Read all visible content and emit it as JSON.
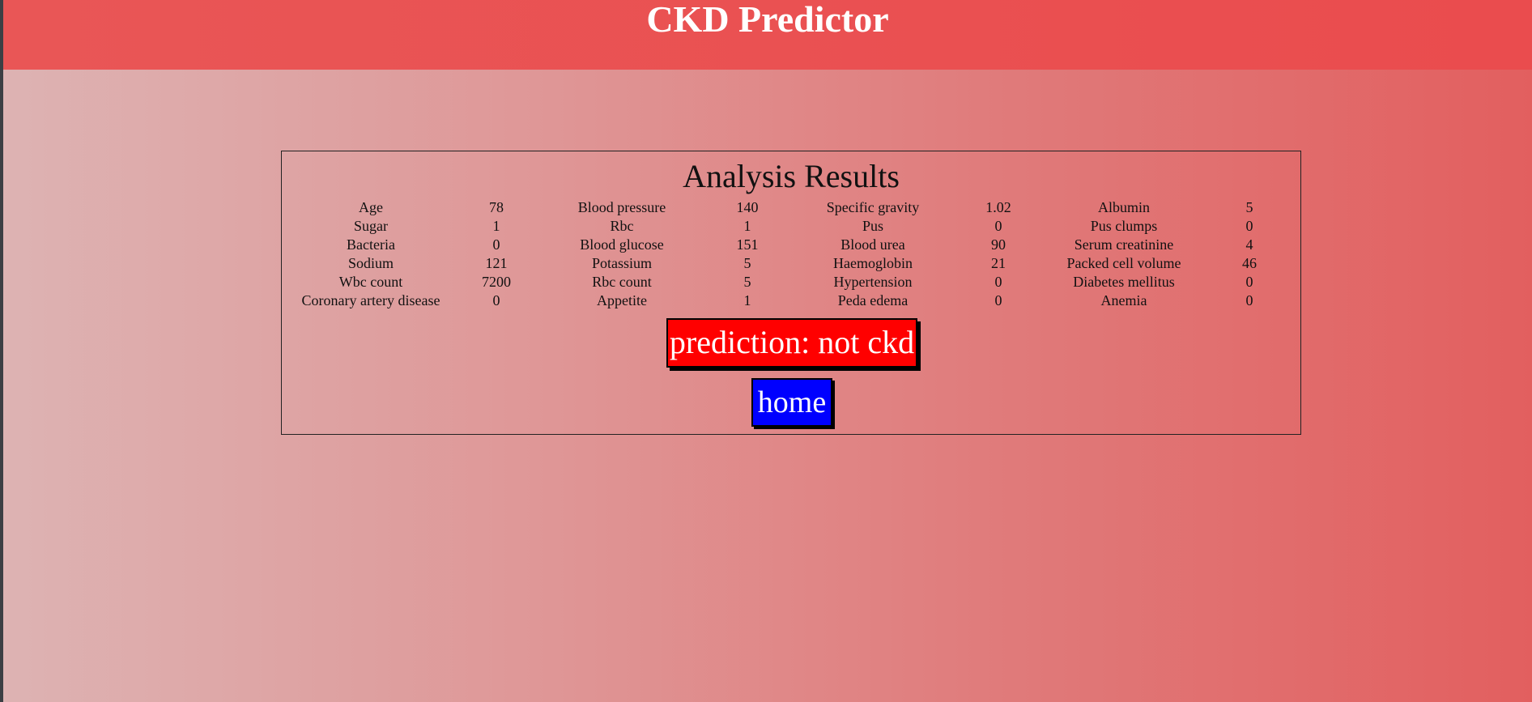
{
  "app": {
    "title": "CKD Predictor"
  },
  "results": {
    "title": "Analysis Results",
    "rows": [
      [
        {
          "label": "Age",
          "value": "78"
        },
        {
          "label": "Blood pressure",
          "value": "140"
        },
        {
          "label": "Specific gravity",
          "value": "1.02"
        },
        {
          "label": "Albumin",
          "value": "5"
        }
      ],
      [
        {
          "label": "Sugar",
          "value": "1"
        },
        {
          "label": "Rbc",
          "value": "1"
        },
        {
          "label": "Pus",
          "value": "0"
        },
        {
          "label": "Pus clumps",
          "value": "0"
        }
      ],
      [
        {
          "label": "Bacteria",
          "value": "0"
        },
        {
          "label": "Blood glucose",
          "value": "151"
        },
        {
          "label": "Blood urea",
          "value": "90"
        },
        {
          "label": "Serum creatinine",
          "value": "4"
        }
      ],
      [
        {
          "label": "Sodium",
          "value": "121"
        },
        {
          "label": "Potassium",
          "value": "5"
        },
        {
          "label": "Haemoglobin",
          "value": "21"
        },
        {
          "label": "Packed cell volume",
          "value": "46"
        }
      ],
      [
        {
          "label": "Wbc count",
          "value": "7200"
        },
        {
          "label": "Rbc count",
          "value": "5"
        },
        {
          "label": "Hypertension",
          "value": "0"
        },
        {
          "label": "Diabetes mellitus",
          "value": "0"
        }
      ],
      [
        {
          "label": "Coronary artery disease",
          "value": "0"
        },
        {
          "label": "Appetite",
          "value": "1"
        },
        {
          "label": "Peda edema",
          "value": "0"
        },
        {
          "label": "Anemia",
          "value": "0"
        }
      ]
    ],
    "prediction_label": "prediction: not ckd",
    "home_label": "home"
  },
  "colors": {
    "header": "#ea4f51",
    "prediction_bg": "#ff0000",
    "home_bg": "#0000ff",
    "text_on_buttons": "#ffffff"
  }
}
